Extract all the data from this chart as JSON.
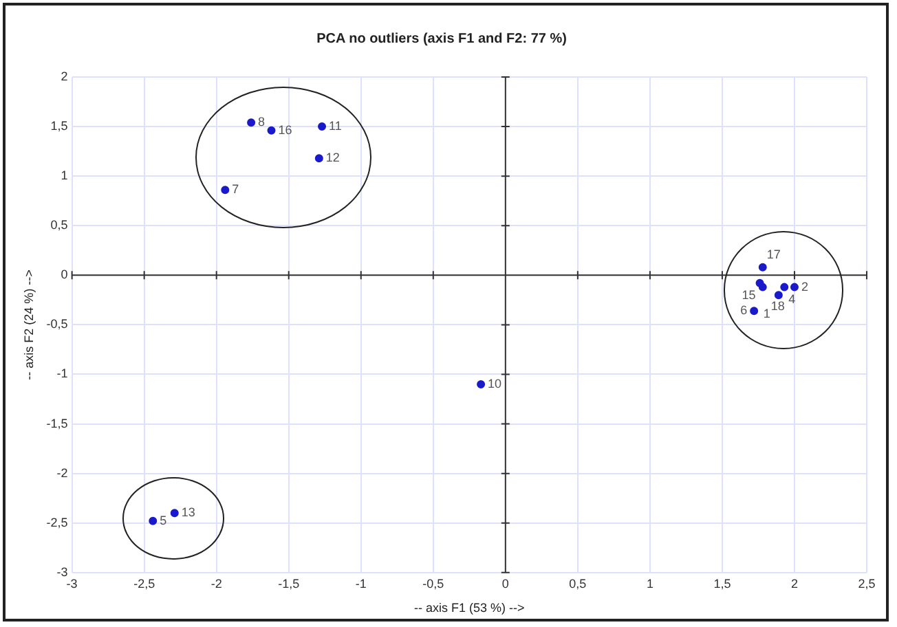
{
  "chart_data": {
    "type": "scatter",
    "title": "PCA no outliers (axis F1 and F2: 77 %)",
    "xlabel": "-- axis F1 (53 %) -->",
    "ylabel": "-- axis F2 (24 %) -->",
    "series": [
      {
        "color": "#1a1acc",
        "x": [
          -1.76,
          -1.62,
          -1.27,
          -1.29,
          -1.94
        ],
        "values": [
          1.54,
          1.46,
          1.5,
          1.18,
          0.86
        ]
      },
      {
        "color": "#1a1acc",
        "x": [
          1.78,
          1.76,
          1.78,
          1.89,
          1.93,
          2.0,
          1.72
        ],
        "values": [
          0.08,
          -0.08,
          -0.12,
          -0.2,
          -0.12,
          -0.12,
          -0.36
        ]
      },
      {
        "color": "#1a1acc",
        "x": [
          -2.44,
          -2.29
        ],
        "values": [
          -2.48,
          -2.4
        ]
      },
      {
        "color": "#1a1acc",
        "x": [
          -0.17
        ],
        "values": [
          -1.1
        ]
      }
    ],
    "annotations": [
      {
        "text": "8",
        "x": -1.76,
        "y": 1.54
      },
      {
        "text": "16",
        "x": -1.62,
        "y": 1.46
      },
      {
        "text": "11",
        "x": -1.27,
        "y": 1.5
      },
      {
        "text": "12",
        "x": -1.29,
        "y": 1.18
      },
      {
        "text": "7",
        "x": -1.94,
        "y": 0.86
      },
      {
        "text": "17",
        "x": 1.78,
        "y": 0.08
      },
      {
        "text": "15",
        "x": 1.76,
        "y": -0.08
      },
      {
        "text": "18",
        "x": 1.78,
        "y": -0.12
      },
      {
        "text": "1",
        "x": 1.89,
        "y": -0.2
      },
      {
        "text": "4",
        "x": 1.93,
        "y": -0.12
      },
      {
        "text": "2",
        "x": 2.0,
        "y": -0.12
      },
      {
        "text": "6",
        "x": 1.72,
        "y": -0.36
      },
      {
        "text": "5",
        "x": -2.44,
        "y": -2.48
      },
      {
        "text": "13",
        "x": -2.29,
        "y": -2.4
      },
      {
        "text": "10",
        "x": -0.17,
        "y": -1.1
      }
    ],
    "xlim": [
      -3,
      2.5
    ],
    "xticks": [
      -3,
      {
        "value": -2.5,
        "label": "-2,5"
      },
      -2,
      {
        "value": -1.5,
        "label": "-1,5"
      },
      -1,
      {
        "value": -0.5,
        "label": "-0,5"
      },
      0,
      {
        "value": 0.5,
        "label": "0,5"
      },
      1,
      {
        "value": 1.5,
        "label": "1,5"
      },
      2,
      {
        "value": 2.5,
        "label": "2,5"
      }
    ],
    "ylim": [
      -3,
      2
    ],
    "yticks": [
      -3,
      {
        "value": -2.5,
        "label": "-2,5"
      },
      -2,
      {
        "value": -1.5,
        "label": "-1,5"
      },
      -1,
      {
        "value": -0.5,
        "label": "-0,5"
      },
      0,
      {
        "value": 0.5,
        "label": "0,5"
      },
      1,
      {
        "value": 1.5,
        "label": "1,5"
      },
      2
    ],
    "grid": true,
    "legend": false,
    "marker": "circle"
  }
}
